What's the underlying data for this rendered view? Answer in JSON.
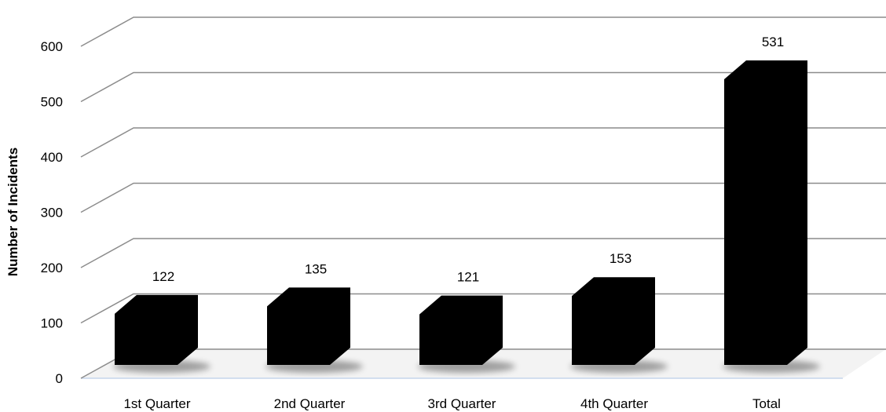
{
  "chart_data": {
    "type": "bar",
    "title": "",
    "xlabel": "",
    "ylabel": "Number of Incidents",
    "categories": [
      "1st Quarter",
      "2nd Quarter",
      "3rd Quarter",
      "4th Quarter",
      "Total"
    ],
    "values": [
      122,
      135,
      121,
      153,
      531
    ],
    "ylim": [
      0,
      600
    ],
    "yticks": [
      0,
      100,
      200,
      300,
      400,
      500,
      600
    ],
    "grid": true,
    "legend": "none",
    "style": "3d-column",
    "bar_color": "#000000"
  }
}
